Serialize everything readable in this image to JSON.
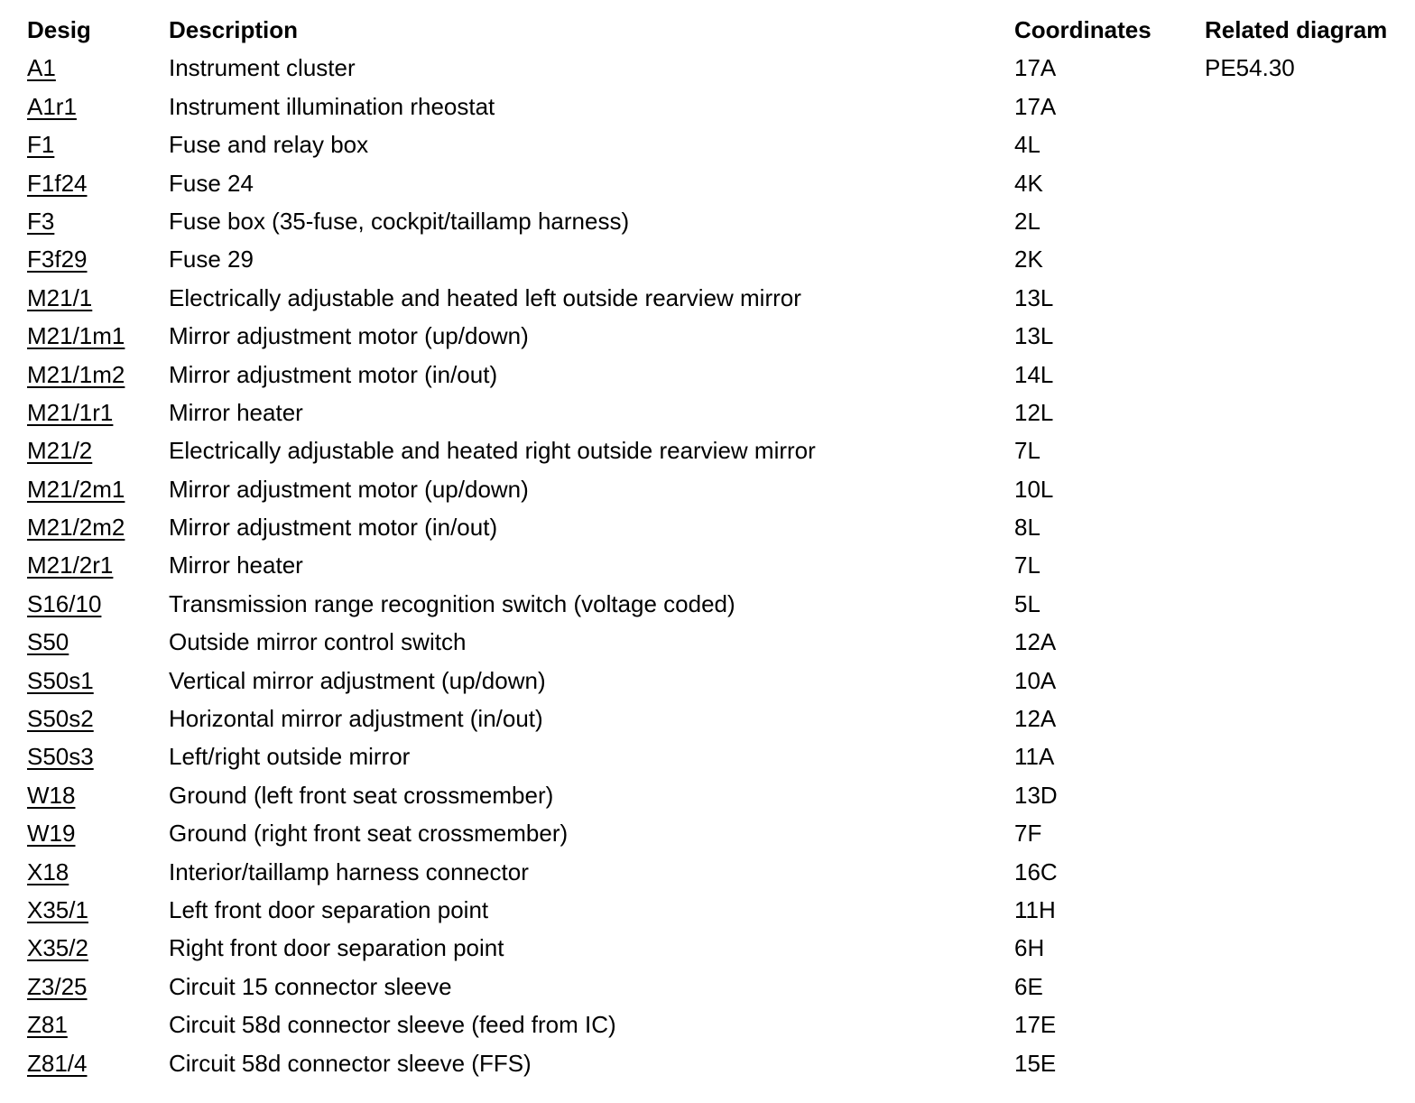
{
  "colors": {
    "text": "#000000",
    "background": "#ffffff"
  },
  "table": {
    "headers": {
      "desig": "Desig",
      "description": "Description",
      "coordinates": "Coordinates",
      "related_diagram": "Related diagram"
    },
    "rows": [
      {
        "desig": "A1",
        "description": "Instrument cluster",
        "coordinates": "17A",
        "related_diagram": "PE54.30"
      },
      {
        "desig": "A1r1",
        "description": "Instrument illumination rheostat",
        "coordinates": "17A",
        "related_diagram": ""
      },
      {
        "desig": "F1",
        "description": "Fuse and relay box",
        "coordinates": "4L",
        "related_diagram": ""
      },
      {
        "desig": "F1f24",
        "description": "Fuse 24",
        "coordinates": "4K",
        "related_diagram": ""
      },
      {
        "desig": "F3",
        "description": "Fuse box (35-fuse, cockpit/taillamp harness)",
        "coordinates": "2L",
        "related_diagram": ""
      },
      {
        "desig": "F3f29",
        "description": "Fuse 29",
        "coordinates": "2K",
        "related_diagram": ""
      },
      {
        "desig": "M21/1",
        "description": "Electrically adjustable and heated left outside rearview mirror",
        "coordinates": "13L",
        "related_diagram": ""
      },
      {
        "desig": "M21/1m1",
        "description": "Mirror adjustment motor (up/down)",
        "coordinates": "13L",
        "related_diagram": ""
      },
      {
        "desig": "M21/1m2",
        "description": "Mirror adjustment motor (in/out)",
        "coordinates": "14L",
        "related_diagram": ""
      },
      {
        "desig": "M21/1r1",
        "description": "Mirror heater",
        "coordinates": "12L",
        "related_diagram": ""
      },
      {
        "desig": "M21/2",
        "description": "Electrically adjustable and heated right outside rearview mirror",
        "coordinates": "7L",
        "related_diagram": ""
      },
      {
        "desig": "M21/2m1",
        "description": "Mirror adjustment motor (up/down)",
        "coordinates": "10L",
        "related_diagram": ""
      },
      {
        "desig": "M21/2m2",
        "description": "Mirror adjustment motor (in/out)",
        "coordinates": "8L",
        "related_diagram": ""
      },
      {
        "desig": "M21/2r1",
        "description": "Mirror heater",
        "coordinates": "7L",
        "related_diagram": ""
      },
      {
        "desig": "S16/10",
        "description": "Transmission range recognition switch (voltage coded)",
        "coordinates": "5L",
        "related_diagram": ""
      },
      {
        "desig": "S50",
        "description": "Outside mirror control switch",
        "coordinates": "12A",
        "related_diagram": ""
      },
      {
        "desig": "S50s1",
        "description": "Vertical mirror adjustment (up/down)",
        "coordinates": "10A",
        "related_diagram": ""
      },
      {
        "desig": "S50s2",
        "description": "Horizontal mirror adjustment (in/out)",
        "coordinates": "12A",
        "related_diagram": ""
      },
      {
        "desig": "S50s3",
        "description": "Left/right outside mirror",
        "coordinates": "11A",
        "related_diagram": ""
      },
      {
        "desig": "W18",
        "description": "Ground (left front seat crossmember)",
        "coordinates": "13D",
        "related_diagram": ""
      },
      {
        "desig": "W19",
        "description": "Ground (right front seat crossmember)",
        "coordinates": "7F",
        "related_diagram": ""
      },
      {
        "desig": "X18",
        "description": "Interior/taillamp harness connector",
        "coordinates": "16C",
        "related_diagram": ""
      },
      {
        "desig": "X35/1",
        "description": "Left front door separation point",
        "coordinates": "11H",
        "related_diagram": ""
      },
      {
        "desig": "X35/2",
        "description": "Right front door separation point",
        "coordinates": "6H",
        "related_diagram": ""
      },
      {
        "desig": "Z3/25",
        "description": "Circuit 15 connector sleeve",
        "coordinates": "6E",
        "related_diagram": ""
      },
      {
        "desig": "Z81",
        "description": "Circuit 58d connector sleeve (feed from IC)",
        "coordinates": "17E",
        "related_diagram": ""
      },
      {
        "desig": "Z81/4",
        "description": "Circuit 58d connector sleeve (FFS)",
        "coordinates": "15E",
        "related_diagram": ""
      }
    ]
  }
}
